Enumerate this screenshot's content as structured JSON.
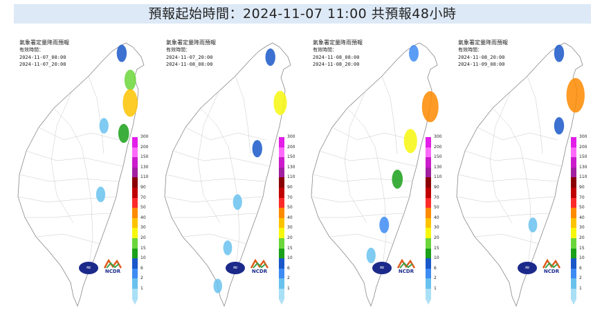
{
  "header": {
    "title": "預報起始時間：2024-11-07 11:00  共預報48小時"
  },
  "panels": [
    {
      "title": "氣象署定量降雨預報",
      "valid_label": "有效時間：",
      "start": "2024-11-07_08:00",
      "end": "2024-11-07_20:00",
      "rain_cells": [
        {
          "lon": 121.62,
          "lat": 25.25,
          "mm": 10
        },
        {
          "lon": 121.75,
          "lat": 24.9,
          "mm": 20
        },
        {
          "lon": 121.75,
          "lat": 24.6,
          "mm": 40
        },
        {
          "lon": 121.65,
          "lat": 24.2,
          "mm": 15
        },
        {
          "lon": 121.35,
          "lat": 24.3,
          "mm": 5
        },
        {
          "lon": 121.3,
          "lat": 23.4,
          "mm": 5
        }
      ]
    },
    {
      "title": "氣象署定量降雨預報",
      "valid_label": "有效時間：",
      "start": "2024-11-07_20:00",
      "end": "2024-11-08_08:00",
      "rain_cells": [
        {
          "lon": 121.65,
          "lat": 25.2,
          "mm": 10
        },
        {
          "lon": 121.8,
          "lat": 24.6,
          "mm": 30
        },
        {
          "lon": 121.45,
          "lat": 24.0,
          "mm": 10
        },
        {
          "lon": 121.15,
          "lat": 23.3,
          "mm": 5
        },
        {
          "lon": 121.0,
          "lat": 22.7,
          "mm": 3
        },
        {
          "lon": 120.85,
          "lat": 22.2,
          "mm": 2
        }
      ]
    },
    {
      "title": "氣象署定量降雨預報",
      "valid_label": "有效時間：",
      "start": "2024-11-08_08:00",
      "end": "2024-11-08_20:00",
      "rain_cells": [
        {
          "lon": 121.6,
          "lat": 25.25,
          "mm": 8
        },
        {
          "lon": 121.85,
          "lat": 24.55,
          "mm": 50
        },
        {
          "lon": 121.55,
          "lat": 24.1,
          "mm": 30
        },
        {
          "lon": 121.35,
          "lat": 23.6,
          "mm": 15
        },
        {
          "lon": 121.15,
          "lat": 23.0,
          "mm": 8
        },
        {
          "lon": 120.95,
          "lat": 22.6,
          "mm": 5
        }
      ]
    },
    {
      "title": "氣象署定量降雨預報",
      "valid_label": "有效時間：",
      "start": "2024-11-08_20:00",
      "end": "2024-11-09_08:00",
      "rain_cells": [
        {
          "lon": 121.6,
          "lat": 25.25,
          "mm": 10
        },
        {
          "lon": 121.85,
          "lat": 24.7,
          "mm": 60
        },
        {
          "lon": 121.6,
          "lat": 24.3,
          "mm": 10
        },
        {
          "lon": 121.2,
          "lat": 23.0,
          "mm": 3
        }
      ]
    }
  ],
  "legend": {
    "levels": [
      "300",
      "200",
      "150",
      "130",
      "110",
      "90",
      "70",
      "50",
      "40",
      "30",
      "20",
      "15",
      "10",
      "6",
      "2",
      "1"
    ],
    "colors": [
      "#e21ee8",
      "#fd6afb",
      "#cb1bcc",
      "#a11fa0",
      "#8b0000",
      "#c00000",
      "#fd2a2a",
      "#fd8a00",
      "#fdc300",
      "#f7f70e",
      "#6bd63b",
      "#1aa019",
      "#1a58c9",
      "#3e8cf3",
      "#69c2ee",
      "#a8e0f5"
    ]
  },
  "logos": {
    "cwa": "≈",
    "ncdr": "NCDR"
  },
  "map": {
    "coast_color": "#888888",
    "land_color": "#ffffff"
  }
}
